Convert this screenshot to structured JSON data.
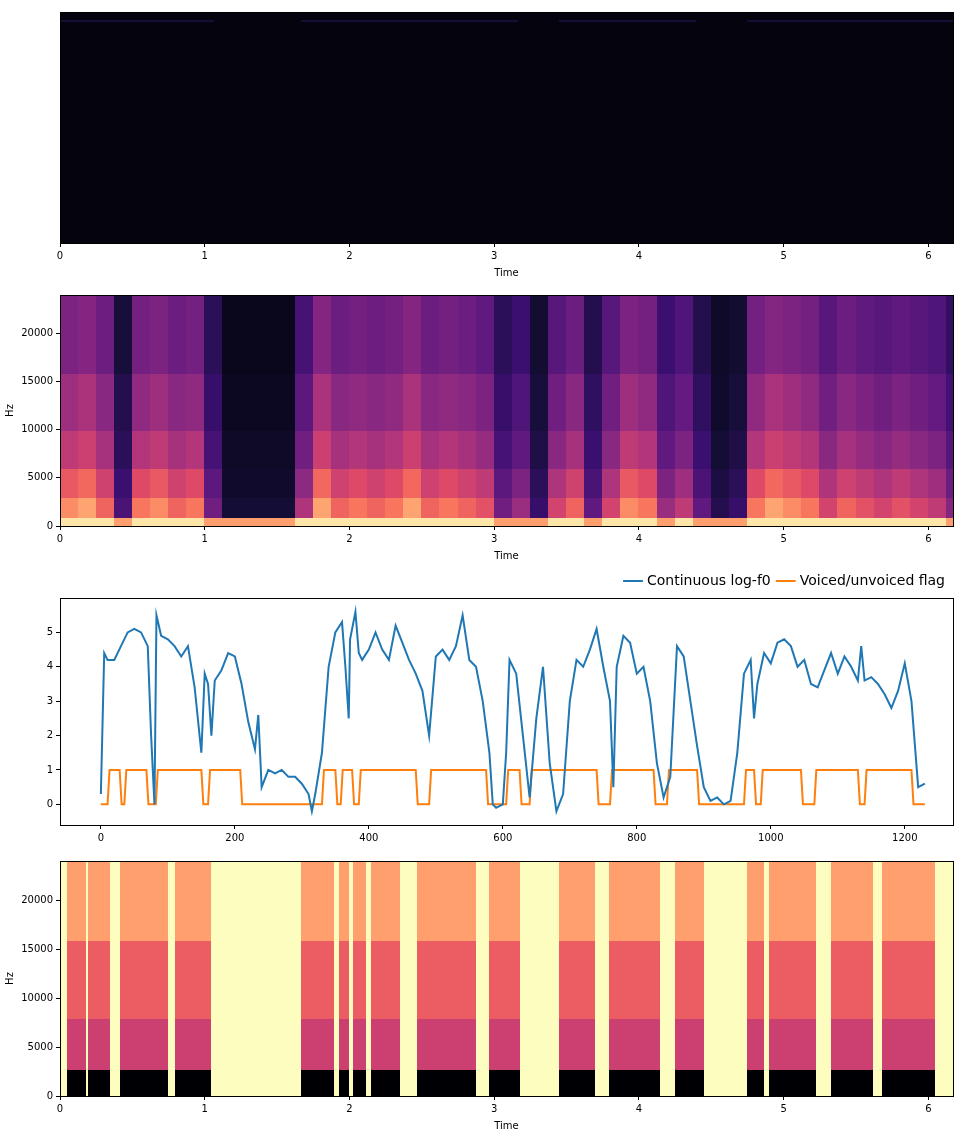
{
  "chart_data": [
    {
      "type": "heatmap",
      "xlabel": "Time",
      "xlim": [
        0,
        6.17
      ],
      "xticks": [
        0,
        1,
        2,
        3,
        4,
        5,
        6
      ],
      "ylim": [
        0,
        24000
      ],
      "tick_labels": "x",
      "grid": false,
      "zlim": [
        0,
        1
      ],
      "x_edges": [
        0,
        1.07,
        1.67,
        3.17,
        3.45,
        4.4,
        4.75,
        6.17
      ],
      "y_edges": [
        0,
        23000,
        23300,
        24000
      ],
      "cells": [
        [
          0.02,
          0.02,
          0.02,
          0.02,
          0.02,
          0.02,
          0.02
        ],
        [
          0.1,
          0.02,
          0.1,
          0.02,
          0.1,
          0.02,
          0.1
        ],
        [
          0.02,
          0.02,
          0.02,
          0.02,
          0.02,
          0.02,
          0.02
        ]
      ]
    },
    {
      "type": "heatmap",
      "xlabel": "Time",
      "ylabel": "Hz",
      "xlim": [
        0,
        6.17
      ],
      "xticks": [
        0,
        1,
        2,
        3,
        4,
        5,
        6
      ],
      "ylim": [
        0,
        24000
      ],
      "yticks": [
        0,
        5000,
        10000,
        15000,
        20000
      ],
      "grid": false,
      "zlim": [
        0,
        1
      ],
      "x_edges": [
        0,
        0.125,
        0.25,
        0.375,
        0.5,
        0.625,
        0.75,
        0.875,
        1,
        1.125,
        1.25,
        1.375,
        1.5,
        1.625,
        1.75,
        1.875,
        2,
        2.125,
        2.25,
        2.375,
        2.5,
        2.625,
        2.75,
        2.875,
        3,
        3.125,
        3.25,
        3.375,
        3.5,
        3.625,
        3.75,
        3.875,
        4,
        4.125,
        4.25,
        4.375,
        4.5,
        4.625,
        4.75,
        4.875,
        5,
        5.125,
        5.25,
        5.375,
        5.5,
        5.625,
        5.75,
        5.875,
        6,
        6.125,
        6.25
      ],
      "y_edges": [
        0,
        1000,
        3000,
        6000,
        10000,
        16000,
        24000
      ],
      "cells": [
        [
          0.95,
          0.95,
          0.95,
          0.8,
          0.95,
          0.95,
          0.95,
          0.95,
          0.8,
          0.8,
          0.8,
          0.8,
          0.8,
          0.95,
          0.95,
          0.95,
          0.95,
          0.95,
          0.95,
          0.95,
          0.95,
          0.95,
          0.95,
          0.95,
          0.8,
          0.8,
          0.8,
          0.95,
          0.95,
          0.8,
          0.95,
          0.95,
          0.95,
          0.8,
          0.95,
          0.8,
          0.8,
          0.8,
          0.95,
          0.95,
          0.95,
          0.95,
          0.95,
          0.95,
          0.95,
          0.95,
          0.95,
          0.95,
          0.95,
          0.8
        ],
        [
          0.76,
          0.81,
          0.67,
          0.24,
          0.71,
          0.76,
          0.67,
          0.71,
          0.33,
          0.1,
          0.1,
          0.1,
          0.1,
          0.48,
          0.81,
          0.67,
          0.71,
          0.67,
          0.71,
          0.81,
          0.67,
          0.71,
          0.67,
          0.62,
          0.33,
          0.43,
          0.19,
          0.57,
          0.67,
          0.29,
          0.57,
          0.76,
          0.71,
          0.43,
          0.52,
          0.29,
          0.14,
          0.19,
          0.71,
          0.81,
          0.76,
          0.71,
          0.57,
          0.67,
          0.62,
          0.57,
          0.62,
          0.57,
          0.52,
          0.38
        ],
        [
          0.64,
          0.68,
          0.56,
          0.2,
          0.6,
          0.64,
          0.56,
          0.6,
          0.28,
          0.08,
          0.08,
          0.08,
          0.08,
          0.4,
          0.68,
          0.56,
          0.6,
          0.56,
          0.6,
          0.68,
          0.56,
          0.6,
          0.56,
          0.52,
          0.28,
          0.36,
          0.16,
          0.48,
          0.56,
          0.24,
          0.48,
          0.64,
          0.6,
          0.36,
          0.44,
          0.24,
          0.12,
          0.16,
          0.6,
          0.68,
          0.64,
          0.6,
          0.48,
          0.56,
          0.52,
          0.48,
          0.52,
          0.48,
          0.44,
          0.32
        ],
        [
          0.52,
          0.55,
          0.46,
          0.16,
          0.49,
          0.52,
          0.46,
          0.49,
          0.23,
          0.07,
          0.07,
          0.07,
          0.07,
          0.33,
          0.55,
          0.46,
          0.49,
          0.46,
          0.49,
          0.55,
          0.46,
          0.49,
          0.46,
          0.42,
          0.23,
          0.29,
          0.13,
          0.39,
          0.46,
          0.2,
          0.39,
          0.52,
          0.49,
          0.29,
          0.36,
          0.2,
          0.1,
          0.13,
          0.49,
          0.55,
          0.52,
          0.49,
          0.39,
          0.46,
          0.42,
          0.39,
          0.42,
          0.39,
          0.36,
          0.26
        ],
        [
          0.44,
          0.47,
          0.39,
          0.14,
          0.41,
          0.44,
          0.39,
          0.41,
          0.19,
          0.06,
          0.06,
          0.06,
          0.06,
          0.28,
          0.47,
          0.39,
          0.41,
          0.39,
          0.41,
          0.47,
          0.39,
          0.41,
          0.39,
          0.36,
          0.19,
          0.25,
          0.11,
          0.33,
          0.39,
          0.17,
          0.33,
          0.44,
          0.41,
          0.25,
          0.3,
          0.17,
          0.08,
          0.11,
          0.41,
          0.47,
          0.44,
          0.41,
          0.33,
          0.39,
          0.36,
          0.33,
          0.36,
          0.33,
          0.3,
          0.22
        ],
        [
          0.36,
          0.38,
          0.32,
          0.11,
          0.34,
          0.36,
          0.32,
          0.34,
          0.16,
          0.05,
          0.05,
          0.05,
          0.05,
          0.23,
          0.38,
          0.32,
          0.34,
          0.32,
          0.34,
          0.38,
          0.32,
          0.34,
          0.32,
          0.29,
          0.16,
          0.2,
          0.09,
          0.27,
          0.32,
          0.14,
          0.27,
          0.36,
          0.34,
          0.2,
          0.25,
          0.14,
          0.07,
          0.09,
          0.34,
          0.38,
          0.36,
          0.34,
          0.27,
          0.32,
          0.29,
          0.27,
          0.29,
          0.27,
          0.25,
          0.18
        ]
      ]
    },
    {
      "type": "line",
      "xlim": [
        -61,
        1272
      ],
      "xticks": [
        0,
        200,
        400,
        600,
        800,
        1000,
        1200
      ],
      "ylim": [
        -0.6,
        6
      ],
      "yticks": [
        0,
        1,
        2,
        3,
        4,
        5
      ],
      "grid": false,
      "legend": "upper right",
      "series": [
        {
          "name": "Continuous log-f0",
          "color": "#1f77b4",
          "x": [
            0,
            5,
            10,
            20,
            30,
            40,
            50,
            60,
            70,
            75,
            80,
            83,
            90,
            100,
            110,
            120,
            130,
            140,
            150,
            155,
            160,
            165,
            170,
            180,
            190,
            200,
            210,
            220,
            230,
            235,
            240,
            250,
            260,
            270,
            280,
            290,
            300,
            310,
            315,
            320,
            330,
            340,
            350,
            360,
            365,
            370,
            372,
            380,
            385,
            390,
            400,
            410,
            420,
            430,
            440,
            450,
            460,
            470,
            480,
            490,
            500,
            510,
            520,
            530,
            540,
            550,
            560,
            570,
            580,
            585,
            590,
            600,
            605,
            610,
            620,
            630,
            640,
            650,
            660,
            670,
            680,
            690,
            700,
            710,
            720,
            730,
            740,
            750,
            760,
            765,
            770,
            780,
            790,
            800,
            810,
            820,
            830,
            840,
            850,
            860,
            870,
            880,
            890,
            900,
            910,
            920,
            930,
            940,
            950,
            960,
            970,
            975,
            980,
            990,
            1000,
            1010,
            1020,
            1030,
            1040,
            1050,
            1060,
            1070,
            1080,
            1090,
            1100,
            1110,
            1120,
            1130,
            1135,
            1140,
            1150,
            1160,
            1170,
            1180,
            1190,
            1200,
            1210,
            1220,
            1230
          ],
          "values": [
            0.3,
            4.4,
            4.2,
            4.2,
            4.6,
            5.0,
            5.1,
            5.0,
            4.6,
            2.0,
            0.0,
            5.5,
            4.9,
            4.8,
            4.6,
            4.3,
            4.6,
            3.4,
            1.5,
            3.8,
            3.5,
            2.0,
            3.6,
            3.9,
            4.4,
            4.3,
            3.5,
            2.4,
            1.6,
            2.6,
            0.5,
            1.0,
            0.9,
            1.0,
            0.8,
            0.8,
            0.6,
            0.3,
            -0.2,
            0.3,
            1.5,
            4.0,
            5.0,
            5.3,
            4.0,
            2.5,
            4.8,
            5.6,
            4.4,
            4.2,
            4.5,
            5.0,
            4.5,
            4.2,
            5.2,
            4.7,
            4.2,
            3.8,
            3.3,
            2.0,
            4.3,
            4.5,
            4.2,
            4.6,
            5.5,
            4.2,
            4.0,
            3.0,
            1.5,
            0.0,
            -0.1,
            0.0,
            1.5,
            4.2,
            3.8,
            2.0,
            0.2,
            2.5,
            4.0,
            1.2,
            -0.2,
            0.3,
            3.0,
            4.2,
            4.0,
            4.5,
            5.1,
            4.0,
            3.0,
            0.5,
            4.0,
            4.9,
            4.7,
            3.8,
            4.0,
            3.0,
            1.2,
            0.2,
            0.8,
            4.6,
            4.3,
            3.0,
            1.7,
            0.5,
            0.1,
            0.2,
            0.0,
            0.1,
            1.5,
            3.8,
            4.2,
            2.5,
            3.5,
            4.4,
            4.1,
            4.7,
            4.8,
            4.6,
            4.0,
            4.2,
            3.5,
            3.4,
            3.9,
            4.4,
            3.8,
            4.3,
            4.0,
            3.6,
            4.6,
            3.6,
            3.7,
            3.5,
            3.2,
            2.8,
            3.3,
            4.1,
            3.0,
            0.5,
            0.6
          ]
        },
        {
          "name": "Voiced/unvoiced flag",
          "color": "#ff7f0e",
          "x": [
            0,
            10,
            13,
            28,
            31,
            35,
            38,
            68,
            71,
            82,
            85,
            150,
            153,
            160,
            163,
            208,
            211,
            330,
            333,
            350,
            353,
            358,
            361,
            375,
            378,
            385,
            388,
            470,
            473,
            490,
            493,
            575,
            578,
            605,
            608,
            625,
            628,
            640,
            643,
            740,
            743,
            760,
            763,
            825,
            828,
            845,
            848,
            890,
            893,
            960,
            963,
            975,
            978,
            985,
            988,
            1045,
            1048,
            1065,
            1068,
            1130,
            1133,
            1140,
            1143,
            1210,
            1213,
            1230
          ],
          "values": [
            0,
            0,
            1,
            1,
            0,
            0,
            1,
            1,
            0,
            0,
            1,
            1,
            0,
            0,
            1,
            1,
            0,
            0,
            1,
            1,
            0,
            0,
            1,
            1,
            0,
            0,
            1,
            1,
            0,
            0,
            1,
            1,
            0,
            0,
            1,
            1,
            0,
            0,
            1,
            1,
            0,
            0,
            1,
            1,
            0,
            0,
            1,
            1,
            0,
            0,
            1,
            1,
            0,
            0,
            1,
            1,
            0,
            0,
            1,
            1,
            0,
            0,
            1,
            1,
            0,
            0
          ]
        }
      ]
    },
    {
      "type": "heatmap",
      "xlabel": "Time",
      "ylabel": "Hz",
      "xlim": [
        0,
        6.17
      ],
      "xticks": [
        0,
        1,
        2,
        3,
        4,
        5,
        6
      ],
      "ylim": [
        0,
        24000
      ],
      "yticks": [
        0,
        5000,
        10000,
        15000,
        20000
      ],
      "grid": false,
      "zlim": [
        0,
        1
      ],
      "x_edges": [
        0,
        0.05,
        0.18,
        0.2,
        0.35,
        0.42,
        0.75,
        0.8,
        1.05,
        1.67,
        1.9,
        1.93,
        2.0,
        2.03,
        2.12,
        2.15,
        2.35,
        2.47,
        2.88,
        2.97,
        3.18,
        3.45,
        3.7,
        3.8,
        4.15,
        4.25,
        4.45,
        4.75,
        4.87,
        4.9,
        5.23,
        5.33,
        5.62,
        5.68,
        6.05,
        6.17
      ],
      "y_edges": [
        0,
        2700,
        8000,
        16000,
        24000
      ],
      "cells": [
        [
          1,
          0,
          1,
          0,
          1,
          0,
          1,
          0,
          1,
          0,
          1,
          0,
          1,
          0,
          1,
          0,
          1,
          0,
          1,
          0,
          1,
          0,
          1,
          0,
          1,
          0,
          1,
          0,
          1,
          0,
          1,
          0,
          1,
          0,
          1
        ],
        [
          1,
          0.55,
          1,
          0.55,
          1,
          0.55,
          1,
          0.55,
          1,
          0.55,
          1,
          0.55,
          1,
          0.55,
          1,
          0.55,
          1,
          0.55,
          1,
          0.55,
          1,
          0.55,
          1,
          0.55,
          1,
          0.55,
          1,
          0.55,
          1,
          0.55,
          1,
          0.55,
          1,
          0.55,
          1
        ],
        [
          1,
          0.65,
          1,
          0.65,
          1,
          0.65,
          1,
          0.65,
          1,
          0.65,
          1,
          0.65,
          1,
          0.65,
          1,
          0.65,
          1,
          0.65,
          1,
          0.65,
          1,
          0.65,
          1,
          0.65,
          1,
          0.65,
          1,
          0.65,
          1,
          0.65,
          1,
          0.65,
          1,
          0.65,
          1
        ],
        [
          1,
          0.8,
          1,
          0.8,
          1,
          0.8,
          1,
          0.8,
          1,
          0.8,
          1,
          0.8,
          1,
          0.8,
          1,
          0.8,
          1,
          0.8,
          1,
          0.8,
          1,
          0.8,
          1,
          0.8,
          1,
          0.8,
          1,
          0.8,
          1,
          0.8,
          1,
          0.8,
          1,
          0.8,
          1
        ]
      ]
    }
  ]
}
